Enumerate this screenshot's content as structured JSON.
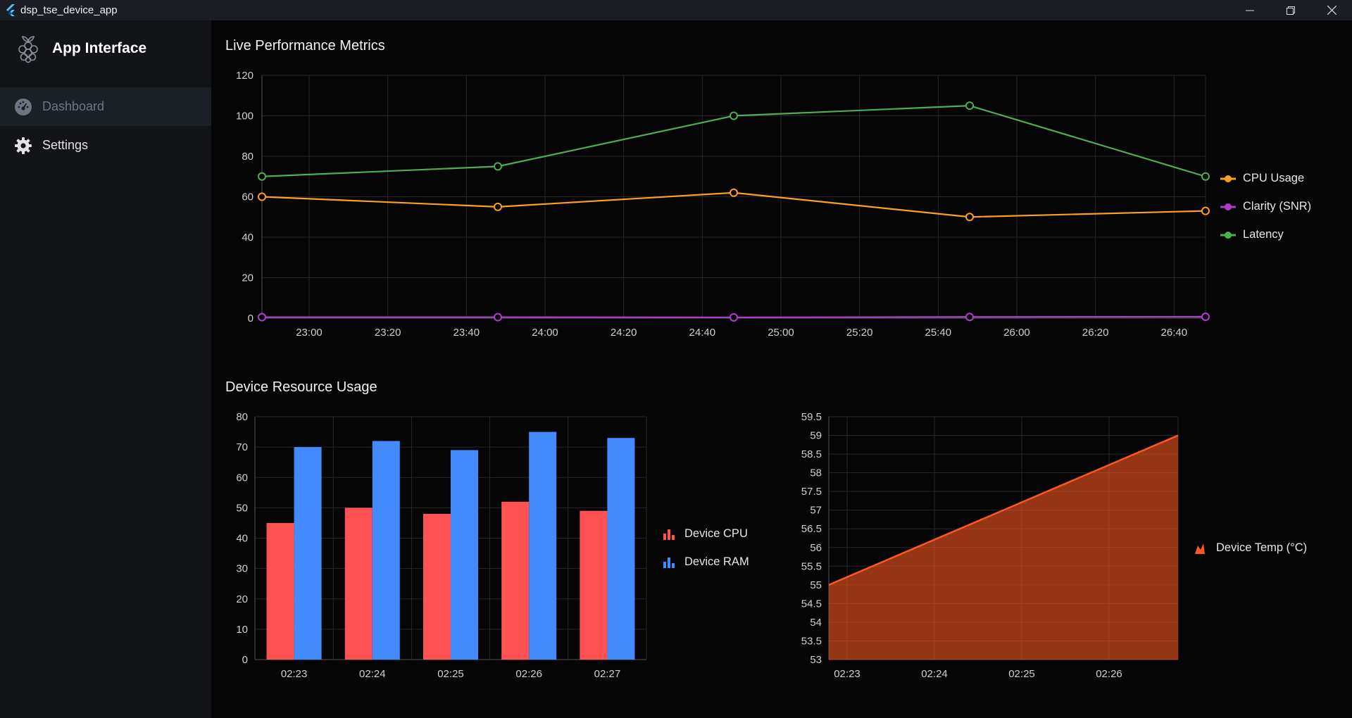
{
  "window": {
    "title": "dsp_tse_device_app"
  },
  "sidebar": {
    "app_name": "App Interface",
    "items": [
      {
        "label": "Dashboard",
        "icon": "dashboard-icon",
        "active": true
      },
      {
        "label": "Settings",
        "icon": "gear-icon",
        "active": false
      }
    ]
  },
  "sections": {
    "live_title": "Live Performance Metrics",
    "resource_title": "Device Resource Usage"
  },
  "colors": {
    "cpu_line": "#ff9f1c",
    "snr_line": "#b03ccf",
    "latency_line": "#4caf50",
    "device_cpu_bar": "#ff5252",
    "device_ram_bar": "#448aff",
    "temp_area": "#ff5722"
  },
  "chart_data": [
    {
      "type": "line",
      "x": [
        "22:48",
        "23:48",
        "24:48",
        "25:48",
        "26:48"
      ],
      "x_tick_labels": [
        "23:00",
        "23:20",
        "23:40",
        "24:00",
        "24:20",
        "24:40",
        "25:00",
        "25:20",
        "25:40",
        "26:00",
        "26:20",
        "26:40"
      ],
      "y_tick_labels": [
        "0",
        "20",
        "40",
        "60",
        "80",
        "100",
        "120"
      ],
      "ylim": [
        0,
        120
      ],
      "grid": true,
      "legend_position": "right",
      "series": [
        {
          "name": "CPU Usage",
          "values": [
            60,
            55,
            62,
            50,
            53
          ]
        },
        {
          "name": "Clarity (SNR)",
          "values": [
            0.5,
            0.5,
            0.4,
            0.6,
            0.7
          ]
        },
        {
          "name": "Latency",
          "values": [
            70,
            75,
            100,
            105,
            70
          ]
        }
      ]
    },
    {
      "type": "bar",
      "categories": [
        "02:23",
        "02:24",
        "02:25",
        "02:26",
        "02:27"
      ],
      "y_tick_labels": [
        "0",
        "10",
        "20",
        "30",
        "40",
        "50",
        "60",
        "70",
        "80"
      ],
      "ylim": [
        0,
        80
      ],
      "grid": true,
      "legend_position": "right",
      "series": [
        {
          "name": "Device CPU",
          "values": [
            45,
            50,
            48,
            52,
            49
          ]
        },
        {
          "name": "Device RAM",
          "values": [
            70,
            72,
            69,
            75,
            73
          ]
        }
      ]
    },
    {
      "type": "area",
      "x_tick_labels": [
        "02:23",
        "02:24",
        "02:25",
        "02:26"
      ],
      "y_tick_labels": [
        "53",
        "53.5",
        "54",
        "54.5",
        "55",
        "55.5",
        "56",
        "56.5",
        "57",
        "57.5",
        "58",
        "58.5",
        "59",
        "59.5"
      ],
      "ylim": [
        53,
        59.5
      ],
      "grid": true,
      "legend_position": "right",
      "series": [
        {
          "name": "Device Temp (°C)",
          "values": [
            55,
            59
          ]
        }
      ]
    }
  ]
}
